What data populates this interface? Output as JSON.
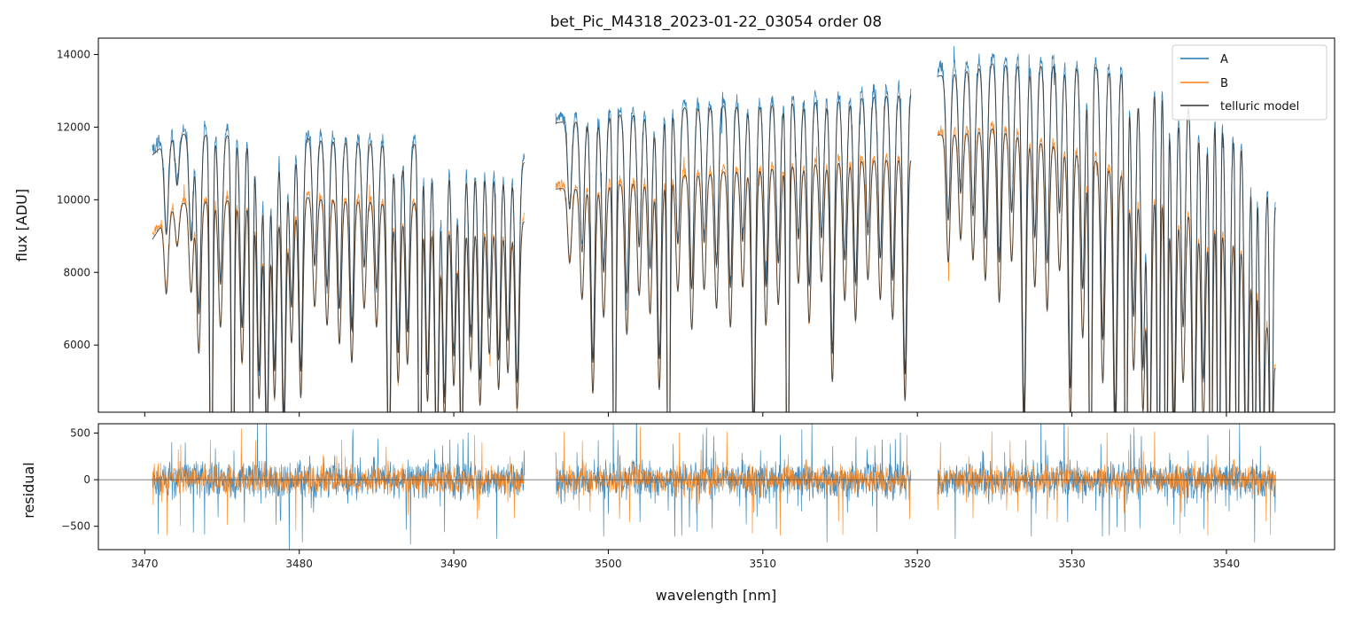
{
  "chart_data": {
    "title": "bet_Pic_M4318_2023-01-22_03054  order 08",
    "xlabel": "wavelength [nm]",
    "xlim": [
      3467,
      3547
    ],
    "x_ticks": [
      3470,
      3480,
      3490,
      3500,
      3510,
      3520,
      3530,
      3540
    ],
    "x_tick_labels": [
      "3470",
      "3480",
      "3490",
      "3500",
      "3510",
      "3520",
      "3530",
      "3540"
    ],
    "segments": [
      [
        3470.5,
        3494.6
      ],
      [
        3496.6,
        3519.6
      ],
      [
        3521.3,
        3543.2
      ]
    ],
    "panels": [
      {
        "id": "flux",
        "type": "line",
        "ylabel": "flux [ADU]",
        "ylim": [
          4150,
          14450
        ],
        "y_ticks": [
          6000,
          8000,
          10000,
          12000,
          14000
        ],
        "y_tick_labels": [
          "6000",
          "8000",
          "10000",
          "12000",
          "14000"
        ],
        "series": [
          {
            "name": "A",
            "color": "#1f77b4",
            "continuum": [
              [
                3470.5,
                11400
              ],
              [
                3472,
                12000
              ],
              [
                3480,
                11900
              ],
              [
                3488,
                11700
              ],
              [
                3494.6,
                11200
              ],
              [
                3496.6,
                12300
              ],
              [
                3500,
                12500
              ],
              [
                3505,
                12750
              ],
              [
                3510,
                12850
              ],
              [
                3515,
                13000
              ],
              [
                3519.6,
                13200
              ],
              [
                3521.3,
                13600
              ],
              [
                3525,
                14000
              ],
              [
                3530,
                13950
              ],
              [
                3535,
                13700
              ],
              [
                3540,
                12500
              ],
              [
                3542,
                11500
              ],
              [
                3543.2,
                10000
              ]
            ]
          },
          {
            "name": "B",
            "color": "#ff7f0e",
            "continuum": [
              [
                3470.5,
                9000
              ],
              [
                3472,
                10000
              ],
              [
                3480,
                10200
              ],
              [
                3488,
                10000
              ],
              [
                3494.6,
                9500
              ],
              [
                3496.6,
                10400
              ],
              [
                3500,
                10500
              ],
              [
                3505,
                10800
              ],
              [
                3510,
                11000
              ],
              [
                3515,
                11200
              ],
              [
                3519.6,
                11300
              ],
              [
                3521.3,
                11900
              ],
              [
                3525,
                12100
              ],
              [
                3530,
                11500
              ],
              [
                3535,
                10500
              ],
              [
                3540,
                9400
              ],
              [
                3542,
                8500
              ],
              [
                3543.2,
                5400
              ]
            ]
          },
          {
            "name": "telluric model",
            "color": "#333333",
            "follows": [
              "A",
              "B"
            ]
          }
        ],
        "absorption_lines": [
          [
            3471.4,
            0.22
          ],
          [
            3472.1,
            0.12
          ],
          [
            3473.0,
            0.25
          ],
          [
            3473.5,
            0.42
          ],
          [
            3474.3,
            1.0
          ],
          [
            3474.9,
            0.35
          ],
          [
            3475.7,
            1.0
          ],
          [
            3476.3,
            0.45
          ],
          [
            3476.9,
            1.0
          ],
          [
            3477.4,
            0.55
          ],
          [
            3477.9,
            0.7
          ],
          [
            3478.4,
            0.55
          ],
          [
            3479.0,
            0.65
          ],
          [
            3479.5,
            0.4
          ],
          [
            3480.1,
            0.55
          ],
          [
            3481.0,
            0.3
          ],
          [
            3481.8,
            0.35
          ],
          [
            3482.6,
            0.4
          ],
          [
            3483.4,
            0.45
          ],
          [
            3484.2,
            0.3
          ],
          [
            3485.0,
            0.35
          ],
          [
            3485.8,
            0.75
          ],
          [
            3486.4,
            0.5
          ],
          [
            3487.0,
            0.45
          ],
          [
            3487.8,
            1.0
          ],
          [
            3488.3,
            0.55
          ],
          [
            3488.9,
            0.75
          ],
          [
            3489.4,
            0.6
          ],
          [
            3490.0,
            0.5
          ],
          [
            3490.5,
            0.72
          ],
          [
            3491.1,
            0.45
          ],
          [
            3491.7,
            0.55
          ],
          [
            3492.3,
            0.4
          ],
          [
            3492.9,
            0.5
          ],
          [
            3493.5,
            0.45
          ],
          [
            3494.1,
            0.55
          ],
          [
            3497.5,
            0.2
          ],
          [
            3498.3,
            0.3
          ],
          [
            3499.0,
            0.55
          ],
          [
            3499.7,
            0.35
          ],
          [
            3500.4,
            1.0
          ],
          [
            3501.2,
            0.4
          ],
          [
            3502.0,
            0.3
          ],
          [
            3502.7,
            0.35
          ],
          [
            3503.3,
            0.55
          ],
          [
            3503.9,
            1.0
          ],
          [
            3504.5,
            0.3
          ],
          [
            3505.4,
            0.4
          ],
          [
            3506.2,
            0.3
          ],
          [
            3507.0,
            0.35
          ],
          [
            3507.9,
            0.4
          ],
          [
            3508.7,
            0.3
          ],
          [
            3509.4,
            0.7
          ],
          [
            3510.2,
            0.4
          ],
          [
            3511.0,
            0.35
          ],
          [
            3511.6,
            1.0
          ],
          [
            3512.3,
            0.3
          ],
          [
            3513.0,
            0.4
          ],
          [
            3513.8,
            0.3
          ],
          [
            3514.5,
            0.55
          ],
          [
            3515.3,
            0.35
          ],
          [
            3516.0,
            0.4
          ],
          [
            3516.8,
            0.3
          ],
          [
            3517.6,
            0.35
          ],
          [
            3518.4,
            0.4
          ],
          [
            3519.2,
            0.6
          ],
          [
            3522.0,
            0.3
          ],
          [
            3522.8,
            0.25
          ],
          [
            3523.6,
            0.3
          ],
          [
            3524.4,
            0.35
          ],
          [
            3525.3,
            0.4
          ],
          [
            3526.1,
            0.3
          ],
          [
            3526.9,
            0.7
          ],
          [
            3527.6,
            0.35
          ],
          [
            3528.4,
            0.4
          ],
          [
            3529.2,
            0.3
          ],
          [
            3529.9,
            0.65
          ],
          [
            3530.7,
            0.45
          ],
          [
            3531.2,
            1.0
          ],
          [
            3532.0,
            0.55
          ],
          [
            3532.8,
            0.7
          ],
          [
            3533.5,
            1.0
          ],
          [
            3534.0,
            0.5
          ],
          [
            3534.6,
            0.6
          ],
          [
            3535.0,
            0.85
          ],
          [
            3535.6,
            1.0
          ],
          [
            3536.1,
            1.0
          ],
          [
            3536.6,
            0.7
          ],
          [
            3537.2,
            0.5
          ],
          [
            3537.9,
            0.75
          ],
          [
            3538.5,
            0.6
          ],
          [
            3539.0,
            1.0
          ],
          [
            3539.5,
            1.0
          ],
          [
            3540.1,
            0.85
          ],
          [
            3540.7,
            1.0
          ],
          [
            3541.3,
            0.8
          ],
          [
            3541.8,
            1.0
          ],
          [
            3542.3,
            0.9
          ],
          [
            3542.9,
            1.0
          ]
        ],
        "legend": {
          "position": "top-right",
          "entries": [
            "A",
            "B",
            "telluric model"
          ]
        }
      },
      {
        "id": "residual",
        "type": "line",
        "ylabel": "residual",
        "ylim": [
          -750,
          600
        ],
        "y_ticks": [
          -500,
          0,
          500
        ],
        "y_tick_labels": [
          "−500",
          "0",
          "500"
        ],
        "zero_line": true,
        "series": [
          {
            "name": "A",
            "color": "#1f77b4",
            "noise_amplitude": 230
          },
          {
            "name": "B",
            "color": "#ff7f0e",
            "noise_amplitude": 180
          }
        ]
      }
    ]
  }
}
